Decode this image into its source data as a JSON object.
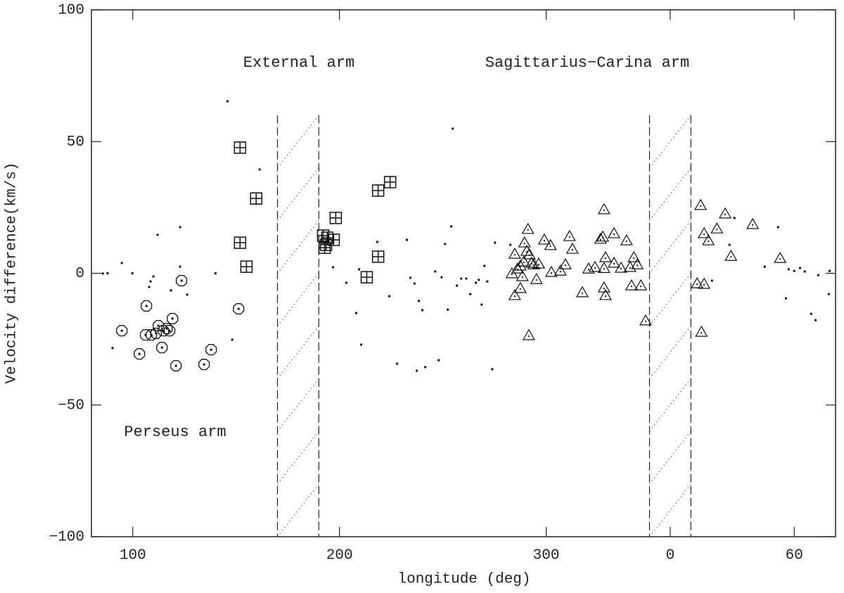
{
  "chart_data": {
    "type": "scatter",
    "xlabel": "longitude (deg)",
    "ylabel": "Velocity difference(km/s)",
    "annotations": [
      "External arm",
      "Sagittarius−Carina arm",
      "Perseus arm"
    ],
    "xlim": [
      80,
      440
    ],
    "ylim": [
      -100,
      100
    ],
    "xticks": [
      100,
      200,
      300,
      {
        "value": 360,
        "label": "0"
      },
      {
        "value": 420,
        "label": "60"
      }
    ],
    "yticks": [
      {
        "value": -100,
        "label": "−100"
      },
      {
        "value": -50,
        "label": "−50"
      },
      0,
      50,
      100
    ],
    "excluded_regions": [
      [
        170,
        190
      ],
      [
        350,
        370
      ]
    ],
    "region_top": 60,
    "series": [
      {
        "marker": "circle",
        "color": "#000000",
        "x": [
          94.7,
          106.6,
          103.2,
          106.2,
          109,
          111.3,
          112.4,
          114.8,
          116.5,
          117.8,
          114.1,
          119.2,
          120.9,
          123.6,
          134.5,
          137.9,
          151.2
        ],
        "values": [
          -21.8,
          -12.4,
          -30.6,
          -23.4,
          -23.4,
          -22.8,
          -19.9,
          -21.8,
          -21.0,
          -21.8,
          -28.2,
          -17.2,
          -35.1,
          -2.8,
          -34.6,
          -29.0,
          -13.5
        ]
      },
      {
        "marker": "square",
        "color": "#000000",
        "x": [
          151.9,
          159.7,
          151.9,
          155,
          192.1,
          193.5,
          192.8,
          197.2,
          198.2,
          218.7,
          224.5,
          218.7,
          213.2,
          194.1
        ],
        "values": [
          47.7,
          28.4,
          11.6,
          2.5,
          14.3,
          10.8,
          9.7,
          12.7,
          21.0,
          31.4,
          34.6,
          6.3,
          -1.5,
          13.5
        ]
      },
      {
        "marker": "triangle",
        "color": "#000000",
        "x": [
          291.2,
          289.5,
          284.8,
          283.4,
          286.1,
          287.5,
          289.2,
          290.6,
          291.9,
          292.9,
          294.0,
          295.3,
          288.5,
          287.5,
          284.8,
          291.6,
          296.4,
          299.1,
          302.1,
          302.5,
          306.9,
          309.3,
          311.3,
          312.7,
          317.5,
          320.5,
          323.6,
          326.3,
          327.4,
          328.0,
          328.7,
          328.0,
          328.0,
          328.7,
          332.8,
          332.8,
          336.2,
          338.9,
          340.6,
          342.4,
          344.1,
          341.3,
          345.8,
          348.1,
          374.7,
          376.4,
          378.5,
          382.6,
          386.6,
          389.4,
          399.9,
          413.2,
          373.0,
          376.4,
          375.1
        ],
        "values": [
          16.7,
          11.6,
          7.3,
          -0.1,
          1.7,
          2.8,
          4.4,
          8.4,
          7.1,
          3.9,
          3.3,
          -2.3,
          -1.2,
          -5.7,
          -8.4,
          -23.6,
          3.6,
          12.7,
          10.6,
          0.4,
          0.9,
          3.3,
          14.0,
          9.2,
          -7.3,
          1.7,
          2.3,
          13.0,
          13.8,
          24.2,
          6.0,
          1.9,
          -5.5,
          -8.4,
          3.9,
          15.1,
          2.0,
          12.4,
          2.3,
          6.0,
          3.3,
          -4.7,
          -4.7,
          -18.0,
          25.8,
          15.1,
          12.4,
          16.9,
          22.6,
          6.5,
          18.6,
          5.7,
          -3.9,
          -4.1,
          -22.3
        ]
      },
      {
        "marker": "dot",
        "color": "#000000",
        "x": [
          85.5,
          87.8,
          90.2,
          94.7,
          99.8,
          108.6,
          107.9,
          110,
          112,
          118.5,
          122.9,
          122.9,
          126.3,
          140,
          145.8,
          148.1,
          161.4,
          196.9,
          203.3,
          208.1,
          209.5,
          210.5,
          218.3,
          224.1,
          227.9,
          232.6,
          234.3,
          236.3,
          238.4,
          240.1,
          241.5,
          237.4,
          246.3,
          248,
          249.4,
          251.1,
          252.4,
          254.1,
          254.8,
          256.8,
          258.9,
          261.3,
          263.3,
          266,
          267.4,
          268.8,
          270.1,
          271.5,
          273.9,
          275.2,
          282.7,
          380.2,
          405.7,
          412.2,
          416,
          417.3,
          420,
          422.8,
          425.1,
          428.2,
          430.3,
          431.6,
          437.1,
          436.7,
          391.1,
          388.7
        ],
        "values": [
          -0.1,
          0,
          -28.4,
          3.9,
          0,
          -3.1,
          -5.2,
          -1.2,
          14.6,
          -6.5,
          2.5,
          17.5,
          -8.1,
          0,
          65.3,
          -25.2,
          39.4,
          2.3,
          -3.6,
          -15.1,
          1.5,
          -27.1,
          11.9,
          -8.7,
          -34.3,
          12.7,
          -1.7,
          -3.9,
          -10.5,
          -14.0,
          -35.6,
          -37.0,
          0.7,
          -33,
          -1.5,
          11.1,
          -13.8,
          17.8,
          54.9,
          -4.7,
          -2.0,
          -2.0,
          -7.9,
          -3.6,
          -2.5,
          -11.9,
          2.8,
          -3.1,
          -36.4,
          11.6,
          10.8,
          -2.8,
          2.5,
          17.5,
          -9.5,
          1.5,
          0.9,
          2.0,
          0.7,
          -15.4,
          -17.8,
          -0.7,
          0.9,
          -7.9,
          21,
          10.8
        ]
      }
    ]
  }
}
